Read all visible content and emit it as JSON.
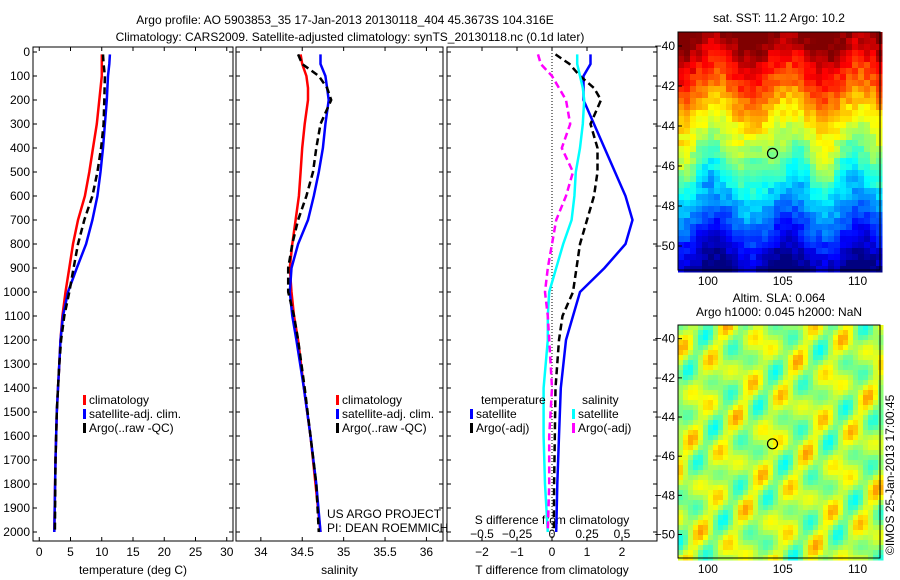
{
  "title": {
    "line1": "Argo profile: AO 5903853_35 17-Jan-2013 20130118_404 45.3673S 104.316E",
    "line2": "Climatology: CARS2009. Satellite-adjusted climatology: synTS_20130118.nc (0.1d later)"
  },
  "credits": {
    "project": "US ARGO PROJECT",
    "pi": "PI: DEAN ROEMMICH",
    "imos": "©IMOS 25-Jan-2013 17:00:45"
  },
  "colors": {
    "clim": "#ff0000",
    "sat": "#0000ff",
    "argo": "#000000",
    "cyan": "#00ffff",
    "magenta": "#ff00ff"
  },
  "chart_data": [
    {
      "type": "line",
      "name": "temperature",
      "xlabel": "temperature (deg C)",
      "xlim": [
        -1,
        31
      ],
      "xticks": [
        0,
        5,
        10,
        15,
        20,
        25,
        30
      ],
      "ylim": [
        0,
        2050
      ],
      "yticks": [
        0,
        100,
        200,
        300,
        400,
        500,
        600,
        700,
        800,
        900,
        1000,
        1100,
        1200,
        1300,
        1400,
        1500,
        1600,
        1700,
        1800,
        1900,
        2000
      ],
      "legend": [
        "climatology",
        "satellite-adj. clim.",
        "Argo(..raw -QC)"
      ],
      "depth": [
        10,
        50,
        100,
        200,
        300,
        400,
        500,
        600,
        700,
        800,
        900,
        1000,
        1100,
        1200,
        1300,
        1400,
        1500,
        1700,
        2000
      ],
      "series": [
        {
          "name": "climatology",
          "values": [
            10,
            10,
            10,
            9.6,
            9.2,
            8.6,
            8,
            7.3,
            6.2,
            5.4,
            4.8,
            4.2,
            3.7,
            3.4,
            3.2,
            3,
            2.8,
            2.6,
            2.4
          ]
        },
        {
          "name": "satellite-adj. clim.",
          "values": [
            11.3,
            11.2,
            11,
            10.8,
            10.5,
            10.2,
            9.8,
            9.3,
            8.5,
            7.5,
            6,
            4.6,
            3.8,
            3.4,
            3.2,
            3,
            2.8,
            2.6,
            2.4
          ]
        },
        {
          "name": "Argo",
          "values": [
            10.2,
            10.3,
            10.5,
            10.4,
            10.3,
            9.9,
            9.3,
            8.5,
            7.2,
            6.2,
            5.5,
            4.8,
            4,
            3.5,
            3.2,
            3,
            2.8,
            2.6,
            2.5
          ]
        }
      ]
    },
    {
      "type": "line",
      "name": "salinity",
      "xlabel": "salinity",
      "xlim": [
        33.7,
        36.2
      ],
      "xticks": [
        34,
        34.5,
        35,
        35.5,
        36
      ],
      "ylim": [
        0,
        2050
      ],
      "legend": [
        "climatology",
        "satellite-adj. clim.",
        "Argo(..raw -QC)"
      ],
      "depth": [
        10,
        50,
        100,
        150,
        200,
        300,
        400,
        500,
        600,
        700,
        800,
        900,
        1000,
        1100,
        1200,
        1400,
        1600,
        1800,
        2000
      ],
      "series": [
        {
          "name": "climatology",
          "values": [
            34.48,
            34.5,
            34.55,
            34.57,
            34.57,
            34.53,
            34.5,
            34.48,
            34.46,
            34.42,
            34.38,
            34.35,
            34.37,
            34.4,
            34.45,
            34.52,
            34.6,
            34.66,
            34.72
          ]
        },
        {
          "name": "satellite-adj. clim.",
          "values": [
            34.72,
            34.72,
            34.78,
            34.8,
            34.82,
            34.78,
            34.75,
            34.7,
            34.64,
            34.57,
            34.45,
            34.37,
            34.35,
            34.38,
            34.43,
            34.52,
            34.6,
            34.67,
            34.72
          ]
        },
        {
          "name": "Argo",
          "values": [
            34.45,
            34.5,
            34.7,
            34.8,
            34.85,
            34.72,
            34.67,
            34.63,
            34.55,
            34.45,
            34.38,
            34.33,
            34.33,
            34.4,
            34.45,
            34.53,
            34.6,
            34.67,
            34.7
          ]
        }
      ]
    },
    {
      "type": "line",
      "name": "difference",
      "xlabel": "T difference from climatology",
      "x2label": "S difference from climatology",
      "xlim": [
        -3,
        3
      ],
      "xticks": [
        -2,
        -1,
        0,
        1,
        2
      ],
      "x2lim": [
        -0.75,
        0.75
      ],
      "x2ticks": [
        -0.5,
        -0.25,
        0,
        0.25,
        0.5
      ],
      "ylim": [
        0,
        2050
      ],
      "legend_t": {
        "title": "temperature",
        "items": [
          "satellite",
          "Argo(-adj)"
        ]
      },
      "legend_s": {
        "title": "salinity",
        "items": [
          "satellite",
          "Argo(-adj)"
        ]
      },
      "depth": [
        10,
        50,
        100,
        150,
        200,
        300,
        400,
        500,
        600,
        700,
        800,
        900,
        1000,
        1100,
        1200,
        1400,
        1600,
        1800,
        2000
      ],
      "series": [
        {
          "name": "T satellite",
          "values": [
            1.1,
            1.1,
            0.9,
            0.9,
            0.9,
            1.2,
            1.5,
            1.8,
            2.1,
            2.3,
            2.1,
            1.5,
            0.8,
            0.6,
            0.4,
            0.25,
            0.2,
            0.15,
            0.12
          ]
        },
        {
          "name": "T Argo(-adj)",
          "values": [
            0.1,
            0.5,
            0.8,
            1.2,
            1.4,
            1.1,
            1.3,
            1.3,
            1.2,
            1,
            0.8,
            0.7,
            0.6,
            0.3,
            0.2,
            0.1,
            0.08,
            0.06,
            0.05
          ]
        },
        {
          "name": "S satellite",
          "values": [
            0.18,
            0.18,
            0.2,
            0.22,
            0.23,
            0.22,
            0.2,
            0.17,
            0.16,
            0.14,
            0.08,
            0.03,
            -0.02,
            -0.03,
            -0.03,
            -0.06,
            -0.06,
            -0.05,
            -0.03
          ]
        },
        {
          "name": "S Argo(-adj)",
          "values": [
            -0.1,
            -0.08,
            0,
            0.05,
            0.1,
            0.13,
            0.07,
            0.15,
            0.1,
            0.03,
            0,
            -0.03,
            -0.05,
            -0.03,
            -0.02,
            0,
            -0.02,
            -0.02,
            -0.03
          ]
        }
      ]
    },
    {
      "type": "heatmap",
      "name": "sst-map",
      "title": "sat. SST: 11.2 Argo: 10.2",
      "xlim": [
        98,
        111.5
      ],
      "xticks": [
        100,
        105,
        110
      ],
      "ylim": [
        -51.2,
        -39.3
      ],
      "yticks": [
        -40,
        -42,
        -44,
        -46,
        -48,
        -50
      ],
      "marker": [
        104.316,
        -45.3673
      ]
    },
    {
      "type": "heatmap",
      "name": "sla-map",
      "title": "Altim. SLA: 0.064",
      "subtitle": "Argo h1000: 0.045 h2000: NaN",
      "xlim": [
        98,
        111.5
      ],
      "xticks": [
        100,
        105,
        110
      ],
      "ylim": [
        -51.2,
        -39.3
      ],
      "yticks": [
        -40,
        -42,
        -44,
        -46,
        -48,
        -50
      ],
      "marker": [
        104.316,
        -45.3673
      ]
    }
  ]
}
